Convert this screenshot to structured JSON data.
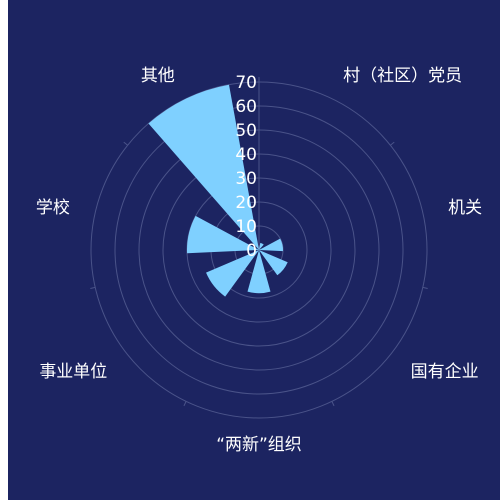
{
  "chart_data": {
    "type": "bar",
    "layout": "polar",
    "title": "",
    "categories": [
      "村（社区）党员",
      "机关",
      "国有企业",
      "“两新”组织",
      "事业单位",
      "学校",
      "其他"
    ],
    "values": [
      3,
      10,
      13,
      18,
      24,
      30,
      70
    ],
    "rlim": [
      0,
      70
    ],
    "rticks": [
      0,
      10,
      20,
      30,
      40,
      50,
      60,
      70
    ],
    "grid": true,
    "colors": {
      "background": "#1c2461",
      "bar": "#7fd0ff",
      "grid": "#4a5389",
      "text": "#ffffff"
    }
  }
}
